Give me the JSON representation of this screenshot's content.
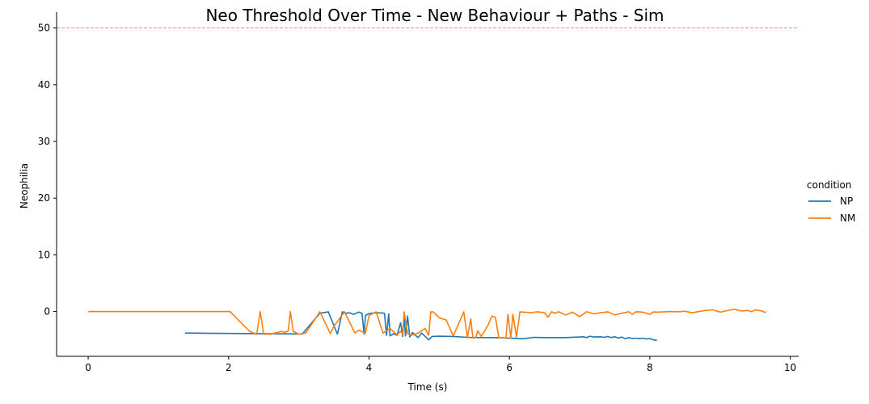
{
  "chart_data": {
    "type": "line",
    "title": "Neo Threshold Over Time - New Behaviour + Paths - Sim",
    "xlabel": "Time (s)",
    "ylabel": "Neophilia",
    "xlim": [
      -0.45,
      10.12
    ],
    "ylim": [
      -7.9,
      52.8
    ],
    "xticks": [
      0,
      2,
      4,
      6,
      8,
      10
    ],
    "yticks": [
      0,
      10,
      20,
      30,
      40,
      50
    ],
    "grid": false,
    "legend": {
      "title": "condition",
      "position": "right"
    },
    "reference_line": {
      "y": 50,
      "color": "#e377c2",
      "style": "dashed"
    },
    "series": [
      {
        "name": "NP",
        "color": "#1f77b4",
        "x": [
          1.38,
          3.05,
          3.3,
          3.42,
          3.55,
          3.62,
          3.68,
          3.72,
          3.78,
          3.85,
          3.9,
          3.93,
          3.95,
          4.0,
          4.1,
          4.18,
          4.22,
          4.25,
          4.28,
          4.3,
          4.35,
          4.4,
          4.45,
          4.48,
          4.5,
          4.52,
          4.55,
          4.58,
          4.62,
          4.65,
          4.7,
          4.75,
          4.8,
          4.85,
          4.9,
          5.0,
          5.2,
          5.4,
          5.6,
          5.8,
          6.0,
          6.2,
          6.35,
          6.5,
          6.8,
          7.0,
          7.05,
          7.1,
          7.15,
          7.2,
          7.3,
          7.35,
          7.4,
          7.45,
          7.5,
          7.55,
          7.6,
          7.65,
          7.7,
          7.75,
          7.8,
          7.85,
          7.9,
          7.95,
          8.0,
          8.05,
          8.1
        ],
        "y": [
          -3.8,
          -3.95,
          -0.3,
          -0.05,
          -4.0,
          -0.05,
          -0.3,
          -0.2,
          -0.5,
          -0.1,
          -0.3,
          -4.0,
          -0.7,
          -0.35,
          -0.2,
          -0.25,
          -0.3,
          -4.2,
          -0.4,
          -4.3,
          -3.9,
          -4.2,
          -2.0,
          -4.4,
          -0.7,
          -4.3,
          -0.8,
          -4.5,
          -3.7,
          -4.1,
          -4.6,
          -3.8,
          -4.4,
          -5.0,
          -4.4,
          -4.35,
          -4.4,
          -4.55,
          -4.6,
          -4.6,
          -4.7,
          -4.8,
          -4.55,
          -4.6,
          -4.6,
          -4.5,
          -4.45,
          -4.6,
          -4.35,
          -4.5,
          -4.45,
          -4.55,
          -4.4,
          -4.6,
          -4.45,
          -4.7,
          -4.5,
          -4.8,
          -4.6,
          -4.75,
          -4.7,
          -4.8,
          -4.7,
          -4.85,
          -4.75,
          -5.0,
          -5.1
        ]
      },
      {
        "name": "NM",
        "color": "#ff7f0e",
        "x": [
          0.0,
          2.02,
          2.3,
          2.4,
          2.45,
          2.5,
          2.6,
          2.75,
          2.8,
          2.85,
          2.88,
          2.92,
          3.0,
          3.1,
          3.3,
          3.45,
          3.5,
          3.65,
          3.8,
          3.85,
          3.95,
          4.0,
          4.1,
          4.2,
          4.3,
          4.4,
          4.45,
          4.48,
          4.5,
          4.55,
          4.6,
          4.7,
          4.8,
          4.85,
          4.88,
          4.92,
          5.0,
          5.1,
          5.2,
          5.3,
          5.35,
          5.4,
          5.45,
          5.48,
          5.52,
          5.55,
          5.6,
          5.7,
          5.75,
          5.8,
          5.85,
          5.9,
          5.95,
          5.98,
          6.02,
          6.05,
          6.1,
          6.15,
          6.3,
          6.4,
          6.5,
          6.55,
          6.6,
          6.65,
          6.7,
          6.8,
          6.9,
          7.0,
          7.1,
          7.2,
          7.3,
          7.4,
          7.5,
          7.6,
          7.7,
          7.75,
          7.8,
          7.9,
          8.0,
          8.05,
          8.1,
          8.2,
          8.3,
          8.4,
          8.5,
          8.6,
          8.7,
          8.8,
          8.9,
          9.0,
          9.1,
          9.2,
          9.3,
          9.4,
          9.45,
          9.5,
          9.6,
          9.65
        ],
        "y": [
          0.0,
          0.0,
          -3.5,
          -4.0,
          0.0,
          -4.0,
          -4.0,
          -3.5,
          -3.7,
          -3.4,
          0.0,
          -3.5,
          -4.0,
          -3.8,
          -0.05,
          -3.9,
          -2.6,
          -0.05,
          -3.8,
          -3.3,
          -3.8,
          -0.7,
          -0.05,
          -3.8,
          -3.0,
          -4.1,
          -3.5,
          -4.0,
          -0.05,
          -3.9,
          -4.2,
          -3.8,
          -3.0,
          -4.2,
          -0.05,
          -0.1,
          -1.1,
          -1.5,
          -4.3,
          -1.5,
          -0.05,
          -4.6,
          -1.3,
          -4.7,
          -4.6,
          -3.4,
          -4.4,
          -2.3,
          -0.8,
          -1.0,
          -4.7,
          -4.6,
          -4.7,
          -0.5,
          -4.7,
          -0.5,
          -4.5,
          -0.05,
          -0.2,
          -0.05,
          -0.2,
          -1.0,
          -0.05,
          -0.3,
          -0.05,
          -0.6,
          -0.1,
          -0.9,
          -0.05,
          -0.4,
          -0.2,
          -0.05,
          -0.6,
          -0.3,
          -0.05,
          -0.5,
          -0.05,
          -0.1,
          -0.5,
          -0.05,
          -0.1,
          -0.05,
          0.0,
          -0.05,
          0.05,
          -0.2,
          0.0,
          0.2,
          0.3,
          -0.1,
          0.15,
          0.4,
          0.1,
          0.2,
          -0.05,
          0.3,
          0.1,
          -0.2
        ]
      }
    ]
  }
}
